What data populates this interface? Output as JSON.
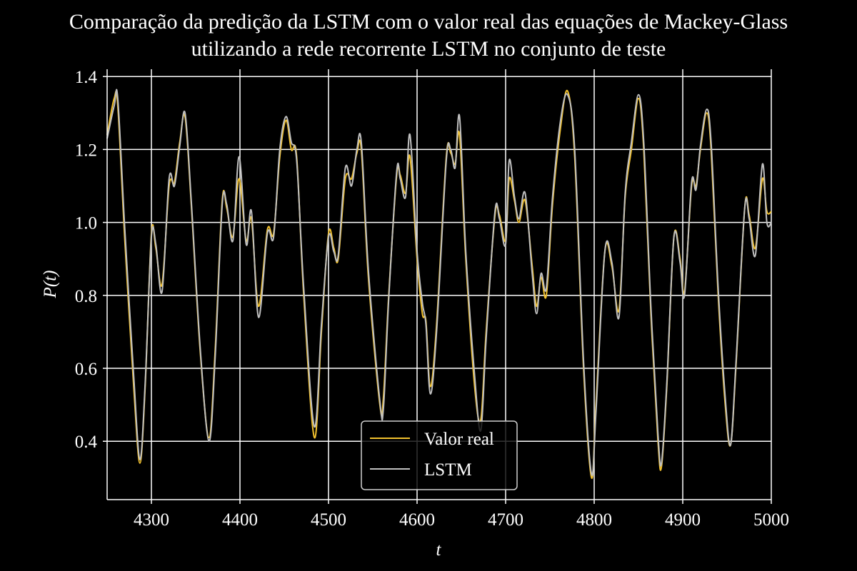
{
  "chart_data": {
    "type": "line",
    "title": "Comparação da predição da LSTM com o valor real das equações de Mackey-Glass",
    "title_lines": [
      "Comparação da predição da LSTM com o valor real das equações de Mackey-Glass",
      "utilizando a rede recorrente LSTM no conjunto de teste"
    ],
    "xlabel": "t",
    "ylabel": "P(t)",
    "xlim": [
      4250,
      5000
    ],
    "ylim": [
      0.24,
      1.42
    ],
    "x_ticks": [
      4300,
      4400,
      4500,
      4600,
      4700,
      4800,
      4900,
      5000
    ],
    "y_ticks": [
      0.4,
      0.6,
      0.8,
      1.0,
      1.2,
      1.4
    ],
    "grid": true,
    "legend_position": "bottom-center",
    "background": "#000000",
    "series": [
      {
        "name": "Valor real",
        "color": "#f2c12e",
        "points": [
          [
            4250,
            1.24
          ],
          [
            4258,
            1.34
          ],
          [
            4262,
            1.32
          ],
          [
            4270,
            0.95
          ],
          [
            4280,
            0.55
          ],
          [
            4287,
            0.34
          ],
          [
            4293,
            0.55
          ],
          [
            4300,
            0.97
          ],
          [
            4305,
            0.93
          ],
          [
            4312,
            0.83
          ],
          [
            4320,
            1.1
          ],
          [
            4326,
            1.11
          ],
          [
            4332,
            1.22
          ],
          [
            4338,
            1.29
          ],
          [
            4345,
            1.05
          ],
          [
            4355,
            0.65
          ],
          [
            4365,
            0.41
          ],
          [
            4372,
            0.65
          ],
          [
            4380,
            1.06
          ],
          [
            4385,
            1.04
          ],
          [
            4392,
            0.96
          ],
          [
            4399,
            1.12
          ],
          [
            4407,
            0.95
          ],
          [
            4413,
            1.01
          ],
          [
            4421,
            0.77
          ],
          [
            4431,
            0.98
          ],
          [
            4438,
            0.97
          ],
          [
            4445,
            1.18
          ],
          [
            4452,
            1.28
          ],
          [
            4458,
            1.2
          ],
          [
            4464,
            1.18
          ],
          [
            4472,
            0.8
          ],
          [
            4484,
            0.41
          ],
          [
            4492,
            0.7
          ],
          [
            4500,
            0.97
          ],
          [
            4506,
            0.93
          ],
          [
            4511,
            0.9
          ],
          [
            4519,
            1.12
          ],
          [
            4526,
            1.12
          ],
          [
            4532,
            1.19
          ],
          [
            4537,
            1.2
          ],
          [
            4545,
            0.85
          ],
          [
            4558,
            0.5
          ],
          [
            4562,
            0.52
          ],
          [
            4568,
            0.8
          ],
          [
            4577,
            1.13
          ],
          [
            4581,
            1.13
          ],
          [
            4587,
            1.08
          ],
          [
            4592,
            1.18
          ],
          [
            4600,
            0.9
          ],
          [
            4606,
            0.75
          ],
          [
            4610,
            0.73
          ],
          [
            4615,
            0.55
          ],
          [
            4622,
            0.72
          ],
          [
            4633,
            1.18
          ],
          [
            4638,
            1.19
          ],
          [
            4643,
            1.16
          ],
          [
            4648,
            1.24
          ],
          [
            4655,
            0.9
          ],
          [
            4665,
            0.55
          ],
          [
            4672,
            0.46
          ],
          [
            4678,
            0.7
          ],
          [
            4688,
            1.02
          ],
          [
            4693,
            1.02
          ],
          [
            4700,
            0.95
          ],
          [
            4704,
            1.12
          ],
          [
            4710,
            1.06
          ],
          [
            4715,
            1.0
          ],
          [
            4722,
            1.06
          ],
          [
            4730,
            0.88
          ],
          [
            4735,
            0.77
          ],
          [
            4740,
            0.85
          ],
          [
            4746,
            0.8
          ],
          [
            4753,
            1.05
          ],
          [
            4762,
            1.26
          ],
          [
            4770,
            1.36
          ],
          [
            4778,
            1.18
          ],
          [
            4788,
            0.6
          ],
          [
            4797,
            0.3
          ],
          [
            4802,
            0.5
          ],
          [
            4812,
            0.92
          ],
          [
            4820,
            0.88
          ],
          [
            4828,
            0.76
          ],
          [
            4835,
            1.07
          ],
          [
            4842,
            1.2
          ],
          [
            4850,
            1.34
          ],
          [
            4856,
            1.2
          ],
          [
            4864,
            0.75
          ],
          [
            4872,
            0.4
          ],
          [
            4876,
            0.33
          ],
          [
            4882,
            0.55
          ],
          [
            4890,
            0.96
          ],
          [
            4897,
            0.9
          ],
          [
            4902,
            0.81
          ],
          [
            4910,
            1.1
          ],
          [
            4915,
            1.1
          ],
          [
            4920,
            1.2
          ],
          [
            4927,
            1.3
          ],
          [
            4932,
            1.2
          ],
          [
            4940,
            0.8
          ],
          [
            4948,
            0.5
          ],
          [
            4954,
            0.39
          ],
          [
            4960,
            0.6
          ],
          [
            4970,
            1.04
          ],
          [
            4975,
            1.02
          ],
          [
            4982,
            0.93
          ],
          [
            4990,
            1.12
          ],
          [
            4995,
            1.03
          ],
          [
            5000,
            1.03
          ]
        ]
      },
      {
        "name": "LSTM",
        "color": "#c0c0c0",
        "points": [
          [
            4250,
            1.23
          ],
          [
            4258,
            1.32
          ],
          [
            4262,
            1.34
          ],
          [
            4270,
            0.98
          ],
          [
            4280,
            0.58
          ],
          [
            4287,
            0.35
          ],
          [
            4293,
            0.56
          ],
          [
            4300,
            0.96
          ],
          [
            4305,
            0.94
          ],
          [
            4312,
            0.81
          ],
          [
            4320,
            1.12
          ],
          [
            4326,
            1.1
          ],
          [
            4332,
            1.21
          ],
          [
            4338,
            1.3
          ],
          [
            4345,
            1.06
          ],
          [
            4355,
            0.66
          ],
          [
            4365,
            0.4
          ],
          [
            4372,
            0.63
          ],
          [
            4380,
            1.05
          ],
          [
            4385,
            1.05
          ],
          [
            4392,
            0.95
          ],
          [
            4399,
            1.18
          ],
          [
            4407,
            0.94
          ],
          [
            4413,
            1.03
          ],
          [
            4421,
            0.74
          ],
          [
            4431,
            0.97
          ],
          [
            4438,
            0.96
          ],
          [
            4445,
            1.2
          ],
          [
            4452,
            1.29
          ],
          [
            4458,
            1.22
          ],
          [
            4464,
            1.17
          ],
          [
            4472,
            0.82
          ],
          [
            4484,
            0.44
          ],
          [
            4492,
            0.72
          ],
          [
            4500,
            0.96
          ],
          [
            4506,
            0.92
          ],
          [
            4511,
            0.91
          ],
          [
            4519,
            1.15
          ],
          [
            4526,
            1.1
          ],
          [
            4532,
            1.2
          ],
          [
            4537,
            1.22
          ],
          [
            4545,
            0.87
          ],
          [
            4558,
            0.51
          ],
          [
            4562,
            0.49
          ],
          [
            4568,
            0.79
          ],
          [
            4577,
            1.14
          ],
          [
            4581,
            1.12
          ],
          [
            4587,
            1.07
          ],
          [
            4592,
            1.24
          ],
          [
            4600,
            0.92
          ],
          [
            4606,
            0.78
          ],
          [
            4610,
            0.72
          ],
          [
            4615,
            0.53
          ],
          [
            4622,
            0.7
          ],
          [
            4633,
            1.17
          ],
          [
            4638,
            1.2
          ],
          [
            4643,
            1.15
          ],
          [
            4648,
            1.29
          ],
          [
            4655,
            0.92
          ],
          [
            4665,
            0.58
          ],
          [
            4672,
            0.43
          ],
          [
            4678,
            0.68
          ],
          [
            4688,
            1.03
          ],
          [
            4693,
            1.01
          ],
          [
            4700,
            0.94
          ],
          [
            4704,
            1.17
          ],
          [
            4710,
            1.07
          ],
          [
            4715,
            1.01
          ],
          [
            4722,
            1.08
          ],
          [
            4730,
            0.86
          ],
          [
            4735,
            0.75
          ],
          [
            4740,
            0.86
          ],
          [
            4746,
            0.82
          ],
          [
            4753,
            1.07
          ],
          [
            4762,
            1.28
          ],
          [
            4770,
            1.35
          ],
          [
            4778,
            1.2
          ],
          [
            4788,
            0.62
          ],
          [
            4797,
            0.31
          ],
          [
            4802,
            0.48
          ],
          [
            4812,
            0.92
          ],
          [
            4820,
            0.89
          ],
          [
            4828,
            0.74
          ],
          [
            4835,
            1.08
          ],
          [
            4842,
            1.22
          ],
          [
            4850,
            1.35
          ],
          [
            4856,
            1.22
          ],
          [
            4864,
            0.77
          ],
          [
            4872,
            0.42
          ],
          [
            4876,
            0.34
          ],
          [
            4882,
            0.56
          ],
          [
            4890,
            0.96
          ],
          [
            4897,
            0.89
          ],
          [
            4902,
            0.8
          ],
          [
            4910,
            1.11
          ],
          [
            4915,
            1.09
          ],
          [
            4920,
            1.21
          ],
          [
            4927,
            1.31
          ],
          [
            4932,
            1.22
          ],
          [
            4940,
            0.82
          ],
          [
            4948,
            0.52
          ],
          [
            4954,
            0.39
          ],
          [
            4960,
            0.61
          ],
          [
            4970,
            1.04
          ],
          [
            4975,
            1.01
          ],
          [
            4982,
            0.91
          ],
          [
            4990,
            1.16
          ],
          [
            4995,
            1.0
          ],
          [
            5000,
            1.0
          ]
        ]
      }
    ]
  }
}
